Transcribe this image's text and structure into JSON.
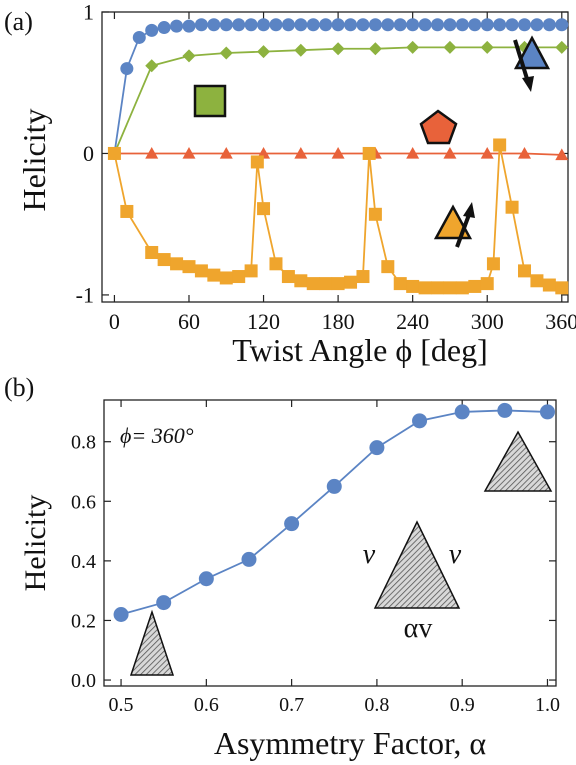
{
  "chart_data": [
    {
      "panel_label": "(a)",
      "type": "line",
      "xlabel": "Twist Angle ϕ [deg]",
      "ylabel": "Helicity",
      "xlim": [
        -10,
        365
      ],
      "ylim": [
        -1.05,
        1.0
      ],
      "xticks": [
        0,
        60,
        120,
        180,
        240,
        300,
        360
      ],
      "yticks": [
        -1,
        0,
        1
      ],
      "ytick_labels": [
        "-1",
        "0",
        "1"
      ],
      "grid": false,
      "series": [
        {
          "marker": "circle",
          "color": "#5B84C4",
          "x": [
            0,
            10,
            20,
            30,
            40,
            50,
            60,
            70,
            80,
            90,
            100,
            110,
            120,
            130,
            140,
            150,
            160,
            170,
            180,
            190,
            200,
            210,
            220,
            230,
            240,
            250,
            260,
            270,
            280,
            290,
            300,
            310,
            320,
            330,
            340,
            350,
            360
          ],
          "y": [
            0,
            0.6,
            0.82,
            0.87,
            0.89,
            0.9,
            0.9,
            0.91,
            0.91,
            0.91,
            0.91,
            0.91,
            0.91,
            0.91,
            0.91,
            0.91,
            0.91,
            0.91,
            0.91,
            0.91,
            0.91,
            0.91,
            0.91,
            0.91,
            0.91,
            0.91,
            0.91,
            0.91,
            0.91,
            0.91,
            0.91,
            0.91,
            0.91,
            0.91,
            0.91,
            0.91,
            0.91
          ]
        },
        {
          "marker": "diamond",
          "color": "#8DB23F",
          "x": [
            0,
            30,
            60,
            90,
            120,
            150,
            180,
            210,
            240,
            270,
            300,
            330,
            360
          ],
          "y": [
            0,
            0.62,
            0.69,
            0.71,
            0.72,
            0.73,
            0.74,
            0.74,
            0.75,
            0.75,
            0.75,
            0.75,
            0.75
          ]
        },
        {
          "marker": "triangle",
          "color": "#E8623A",
          "x": [
            0,
            30,
            60,
            90,
            120,
            150,
            180,
            210,
            240,
            270,
            300,
            330,
            360
          ],
          "y": [
            0,
            0,
            0,
            0,
            0,
            0,
            0,
            0,
            0,
            0,
            0,
            0,
            -0.01
          ]
        },
        {
          "marker": "square",
          "color": "#EFA52D",
          "x": [
            0,
            10,
            30,
            40,
            50,
            60,
            70,
            80,
            90,
            100,
            110,
            115,
            120,
            130,
            140,
            150,
            160,
            170,
            180,
            190,
            200,
            205,
            210,
            220,
            230,
            240,
            250,
            260,
            270,
            280,
            290,
            300,
            305,
            310,
            320,
            330,
            340,
            350,
            360
          ],
          "y": [
            0,
            -0.41,
            -0.7,
            -0.75,
            -0.78,
            -0.8,
            -0.83,
            -0.86,
            -0.88,
            -0.87,
            -0.83,
            -0.06,
            -0.39,
            -0.78,
            -0.87,
            -0.9,
            -0.92,
            -0.92,
            -0.92,
            -0.91,
            -0.87,
            0.0,
            -0.43,
            -0.8,
            -0.92,
            -0.94,
            -0.95,
            -0.95,
            -0.95,
            -0.95,
            -0.94,
            -0.92,
            -0.78,
            0.06,
            -0.38,
            -0.83,
            -0.9,
            -0.93,
            -0.95
          ]
        }
      ],
      "markers_legend_icons": [
        {
          "shape": "square",
          "color": "#8DB23F"
        },
        {
          "shape": "pentagon",
          "color": "#E8623A"
        },
        {
          "shape": "triangle-arrow-up",
          "color": "#EFA52D"
        },
        {
          "shape": "triangle-arrow-down",
          "color": "#5B84C4"
        }
      ]
    },
    {
      "panel_label": "(b)",
      "type": "line",
      "xlabel": "Asymmetry Factor, α",
      "ylabel": "Helicity",
      "xlim": [
        0.48,
        1.01
      ],
      "ylim": [
        -0.02,
        0.94
      ],
      "xticks": [
        0.5,
        0.6,
        0.7,
        0.8,
        0.9,
        1.0
      ],
      "xtick_labels": [
        "0.5",
        "0.6",
        "0.7",
        "0.8",
        "0.9",
        "1.0"
      ],
      "yticks": [
        0.0,
        0.2,
        0.4,
        0.6,
        0.8
      ],
      "ytick_labels": [
        "0.0",
        "0.2",
        "0.4",
        "0.6",
        "0.8"
      ],
      "annotation": "ϕ= 360°",
      "triangle_side_label": "v",
      "triangle_base_label": "αv",
      "grid": false,
      "series": [
        {
          "marker": "circle",
          "color": "#5B84C4",
          "x": [
            0.5,
            0.55,
            0.6,
            0.65,
            0.7,
            0.75,
            0.8,
            0.85,
            0.9,
            0.95,
            1.0
          ],
          "y": [
            0.22,
            0.26,
            0.34,
            0.405,
            0.525,
            0.65,
            0.78,
            0.87,
            0.9,
            0.905,
            0.9
          ]
        }
      ]
    }
  ]
}
